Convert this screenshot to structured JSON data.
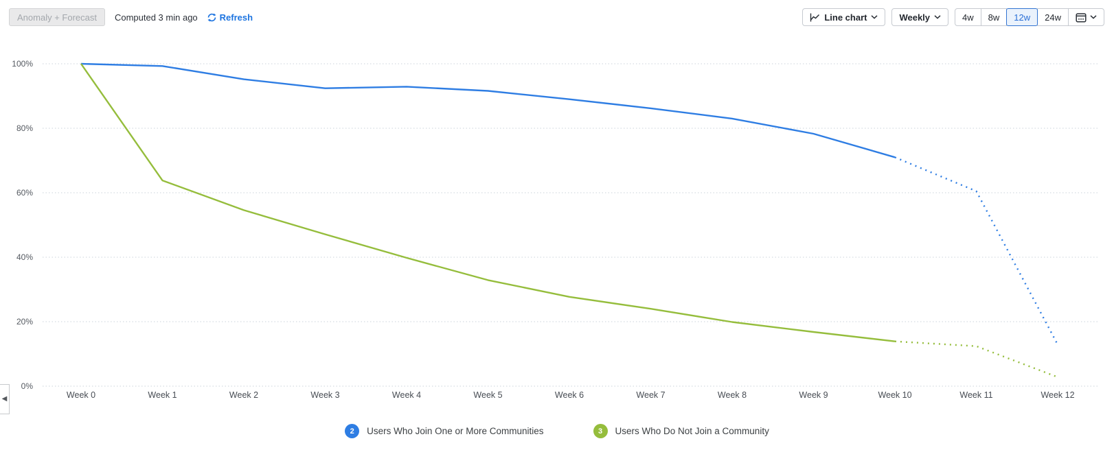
{
  "toolbar": {
    "anomaly_button_label": "Anomaly + Forecast",
    "computed_text": "Computed 3 min ago",
    "refresh_label": "Refresh",
    "chart_type_label": "Line chart",
    "interval_label": "Weekly",
    "windows": [
      "4w",
      "8w",
      "12w",
      "24w"
    ],
    "selected_window": "12w"
  },
  "colors": {
    "accent_blue": "#1d74e0",
    "selected_window_blue": "#2a6fd6",
    "series_blue": "#2e7de3",
    "series_green": "#95bd3c",
    "gridline": "#c9d1d9",
    "axis_text": "#4c5158"
  },
  "chart_data": {
    "type": "line",
    "title": "",
    "xlabel": "",
    "ylabel": "",
    "categories": [
      "Week 0",
      "Week 1",
      "Week 2",
      "Week 3",
      "Week 4",
      "Week 5",
      "Week 6",
      "Week 7",
      "Week 8",
      "Week 9",
      "Week 10",
      "Week 11",
      "Week 12"
    ],
    "series": [
      {
        "name": "Users Who Join One or More Communities",
        "number": "2",
        "color": "#2e7de3",
        "values": [
          100,
          99.3,
          95.2,
          92.4,
          92.9,
          91.6,
          89.0,
          86.2,
          83.0,
          78.3,
          71.0,
          60.5,
          12.9
        ],
        "forecast_from_index": 10
      },
      {
        "name": "Users Who Do Not Join a Community",
        "number": "3",
        "color": "#95bd3c",
        "values": [
          100,
          63.8,
          54.6,
          47.1,
          39.8,
          32.9,
          27.7,
          24.0,
          19.9,
          16.8,
          13.9,
          12.4,
          2.8
        ],
        "forecast_from_index": 10
      }
    ],
    "y_ticks": [
      "0%",
      "20%",
      "40%",
      "60%",
      "80%",
      "100%"
    ],
    "y_tick_values": [
      0,
      20,
      40,
      60,
      80,
      100
    ],
    "ylim": [
      0,
      100
    ],
    "grid": "horizontal-dotted",
    "forecast_style": "dotted",
    "legend_position": "bottom"
  }
}
